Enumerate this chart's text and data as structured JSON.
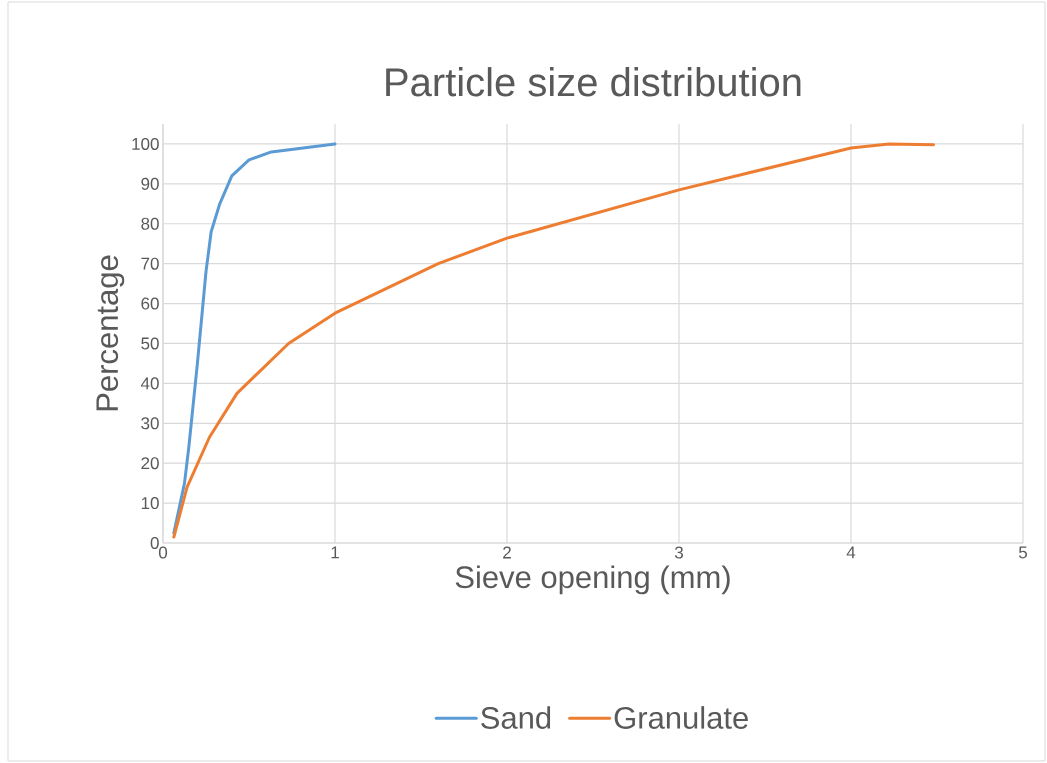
{
  "chart_data": {
    "type": "line",
    "title": "Particle size distribution",
    "xlabel": "Sieve opening (mm)",
    "ylabel": "Percentage",
    "xlim": [
      0,
      5
    ],
    "ylim": [
      0,
      105
    ],
    "xticks": [
      0,
      1,
      2,
      3,
      4,
      5
    ],
    "yticks": [
      0,
      10,
      20,
      30,
      40,
      50,
      60,
      70,
      80,
      90,
      100
    ],
    "grid": true,
    "legend": "bottom",
    "marker": "none",
    "line_style": "solid",
    "series": [
      {
        "name": "Sand",
        "color": "#5b9bd5",
        "x": [
          0.063,
          0.125,
          0.15,
          0.2,
          0.25,
          0.28,
          0.33,
          0.4,
          0.5,
          0.63,
          1
        ],
        "values": [
          2.5,
          15,
          24,
          45,
          68,
          78,
          85,
          92,
          96,
          98,
          100
        ]
      },
      {
        "name": "Granulate",
        "color": "#ed7d31",
        "x": [
          0.063,
          0.14,
          0.27,
          0.43,
          0.73,
          1,
          1.6,
          2,
          3,
          4,
          4.22,
          4.48
        ],
        "values": [
          1.5,
          14,
          26.5,
          37.5,
          50,
          57.6,
          70,
          76.4,
          88.5,
          99,
          100,
          99.8
        ]
      }
    ]
  }
}
